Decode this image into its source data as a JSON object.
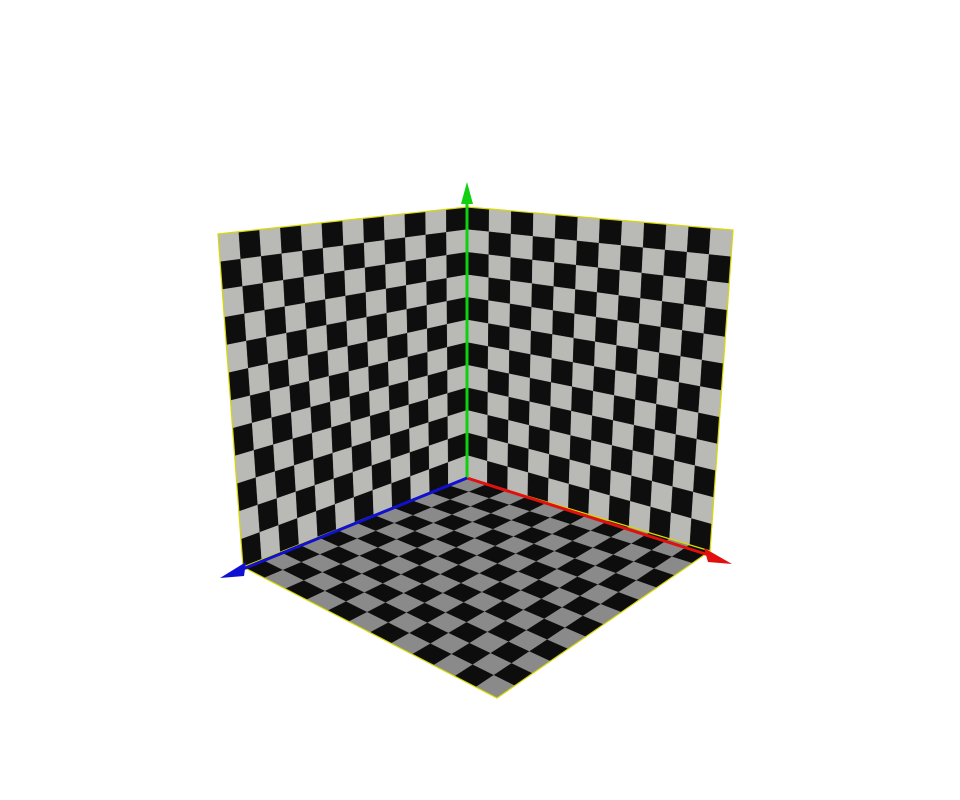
{
  "scene": {
    "background": "#ffffff",
    "checker": {
      "light_wall": "#b9bab5",
      "dark_wall": "#0e0e0e",
      "light_floor": "#8a8a8a",
      "dark_floor": "#0d0d0d",
      "rows": 12,
      "cols": 12
    },
    "panel_border_color": "#d8d800",
    "axes": [
      {
        "name": "x-axis",
        "color": "#e01010"
      },
      {
        "name": "y-axis",
        "color": "#10d010"
      },
      {
        "name": "z-axis",
        "color": "#1010d0"
      }
    ],
    "panels": [
      "back-left-wall",
      "back-right-wall",
      "floor"
    ]
  }
}
